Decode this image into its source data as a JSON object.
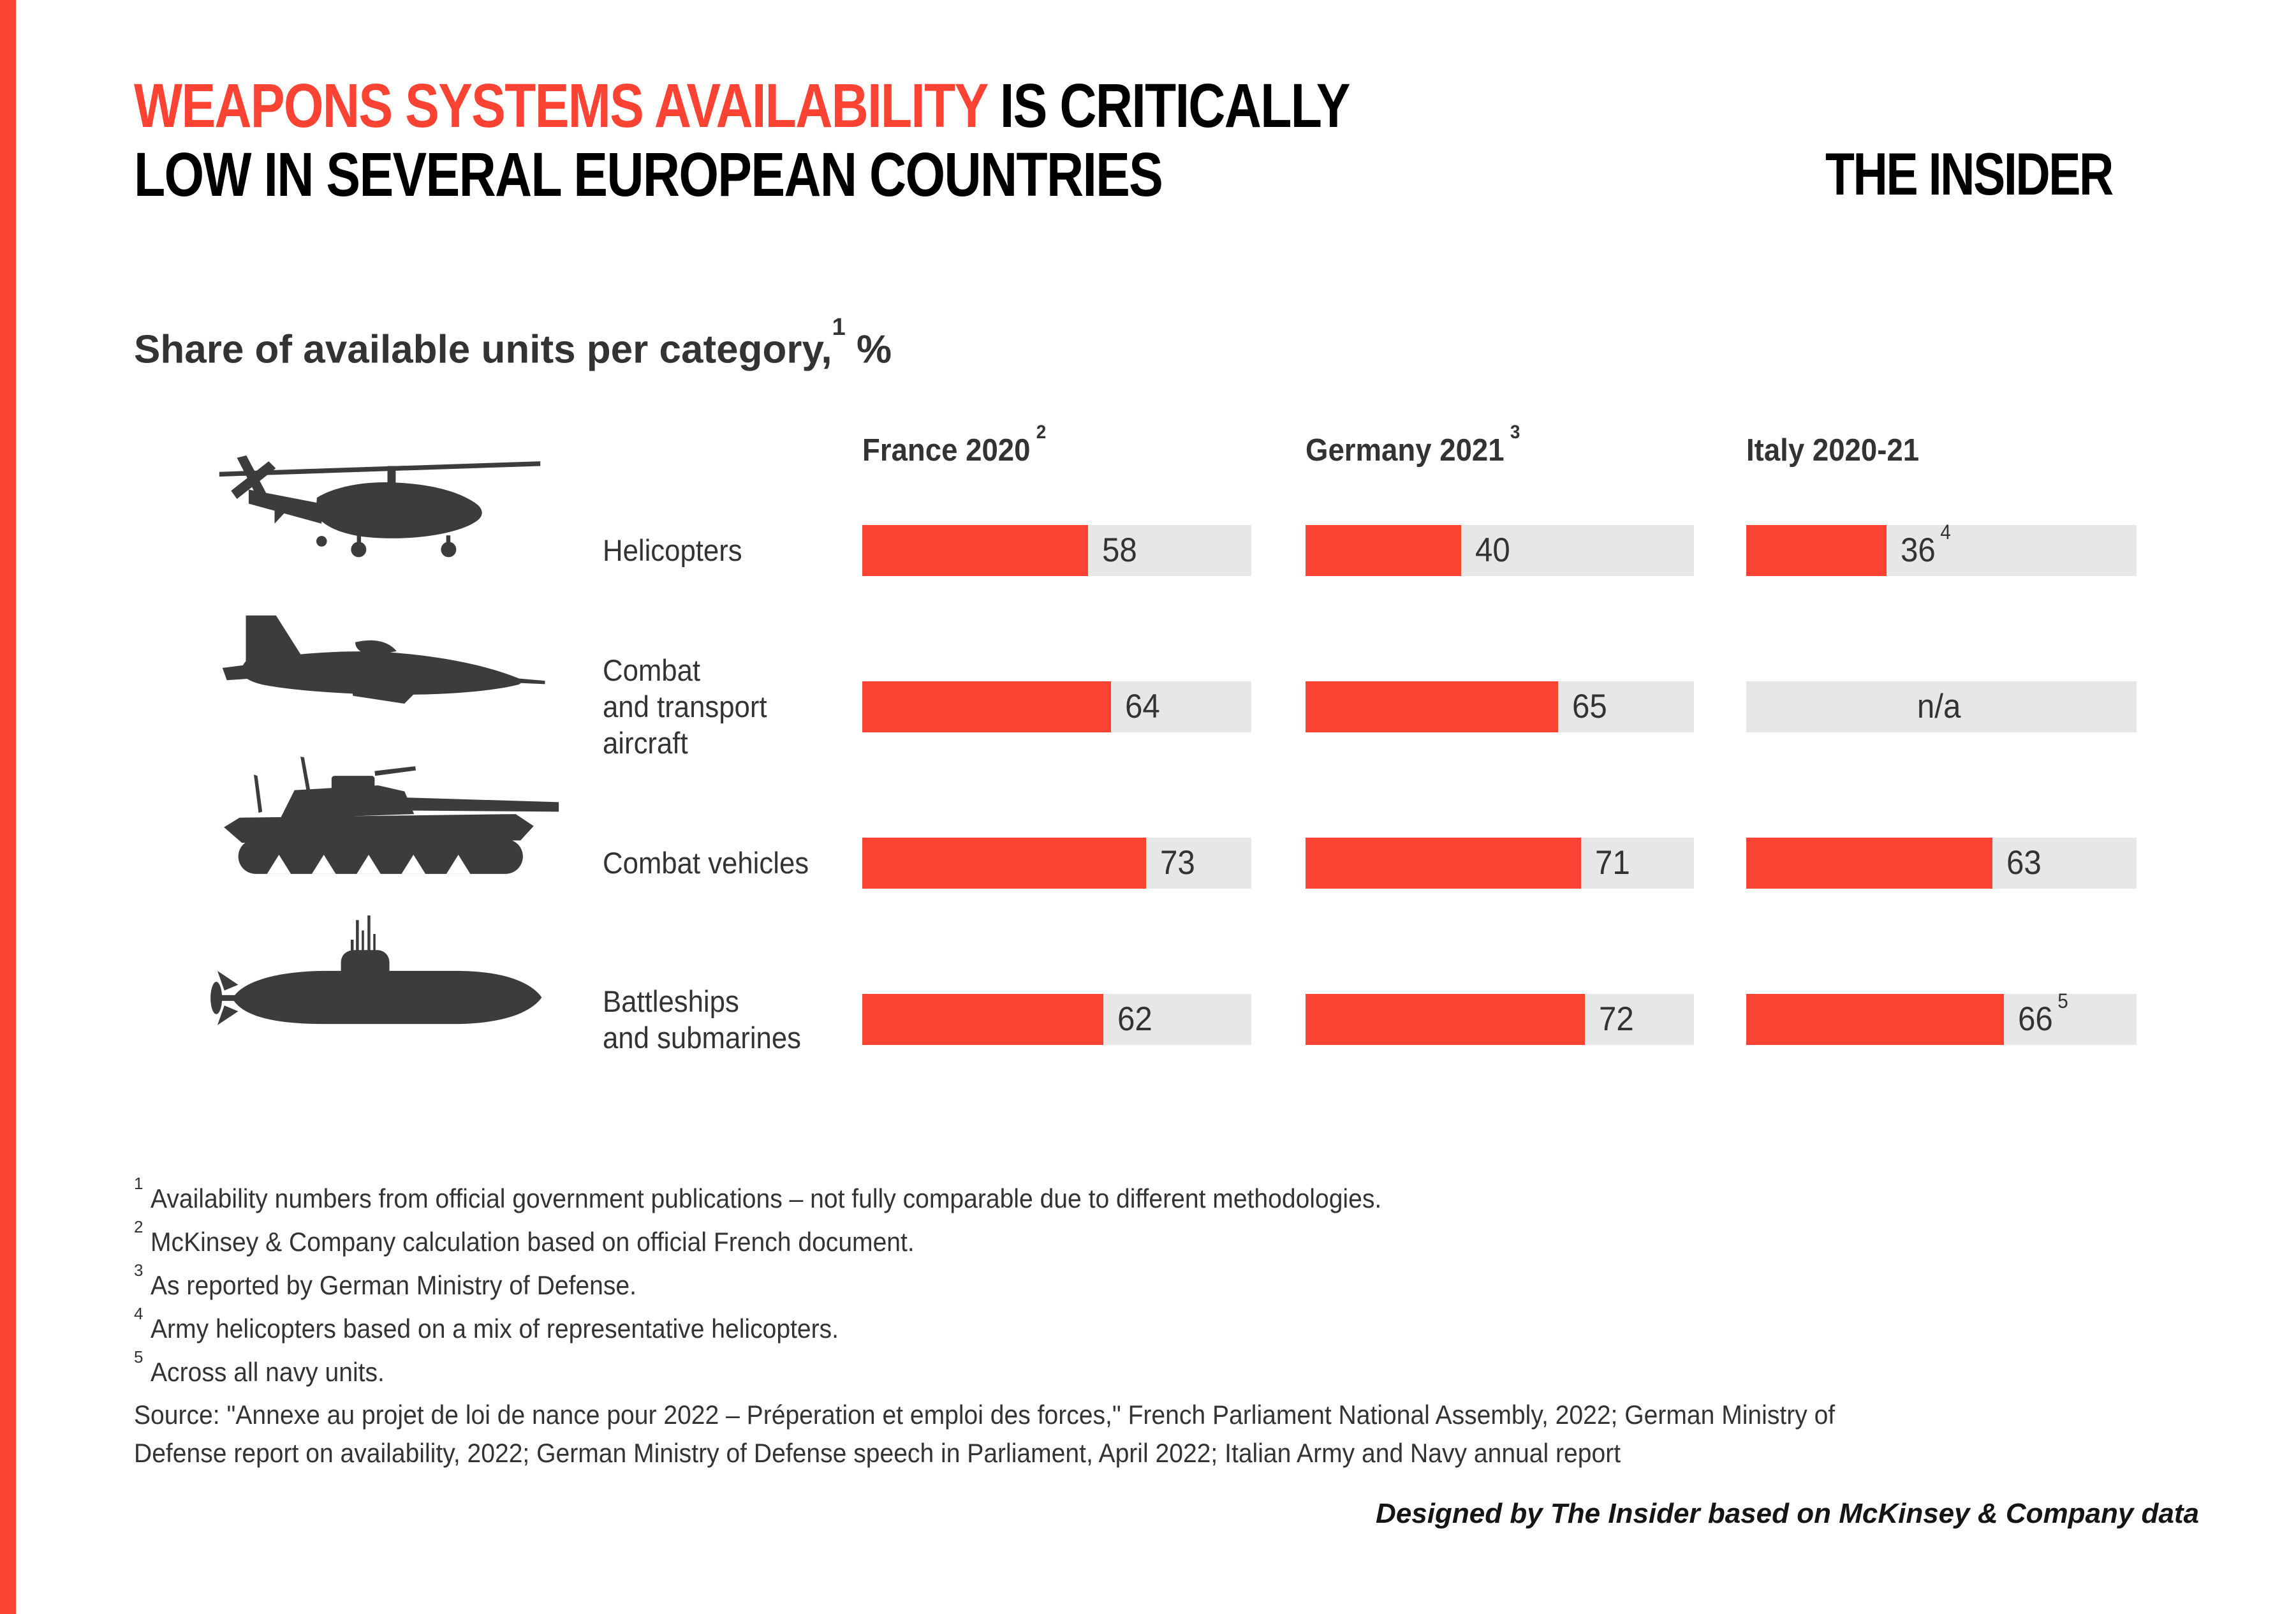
{
  "colors": {
    "accent": "#FB4334",
    "bar_track": "#E7E7E7",
    "icon": "#3C3C3C",
    "text": "#333333",
    "title_black": "#000000"
  },
  "header": {
    "title_highlight": "WEAPONS SYSTEMS AVAILABILITY",
    "title_line1_rest": " IS CRITICALLY",
    "title_line2": "LOW IN SEVERAL EUROPEAN COUNTRIES",
    "logo": "THE INSIDER"
  },
  "subtitle": {
    "text": "Share of available units per category,",
    "mark": "1",
    "suffix": " %"
  },
  "columns": [
    {
      "label": "France 2020",
      "sup": "2"
    },
    {
      "label": "Germany 2021",
      "sup": "3"
    },
    {
      "label": "Italy 2020-21",
      "sup": ""
    }
  ],
  "rows": [
    {
      "label": "Helicopters",
      "icon": "helicopter-icon",
      "cells": [
        {
          "pct": 58,
          "label": "58",
          "sup": ""
        },
        {
          "pct": 40,
          "label": "40",
          "sup": ""
        },
        {
          "pct": 36,
          "label": "36",
          "sup": "4"
        }
      ]
    },
    {
      "label": "Combat\nand transport\naircraft",
      "icon": "fighter-jet-icon",
      "cells": [
        {
          "pct": 64,
          "label": "64",
          "sup": ""
        },
        {
          "pct": 65,
          "label": "65",
          "sup": ""
        },
        {
          "pct": null,
          "label": "n/a",
          "sup": ""
        }
      ]
    },
    {
      "label": "Combat vehicles",
      "icon": "tank-icon",
      "cells": [
        {
          "pct": 73,
          "label": "73",
          "sup": ""
        },
        {
          "pct": 71,
          "label": "71",
          "sup": ""
        },
        {
          "pct": 63,
          "label": "63",
          "sup": ""
        }
      ]
    },
    {
      "label": "Battleships\nand submarines",
      "icon": "submarine-icon",
      "cells": [
        {
          "pct": 62,
          "label": "62",
          "sup": ""
        },
        {
          "pct": 72,
          "label": "72",
          "sup": ""
        },
        {
          "pct": 66,
          "label": "66",
          "sup": "5"
        }
      ]
    }
  ],
  "footnotes": [
    {
      "mark": "1",
      "text": "Availability numbers from official government publications – not fully comparable due to different methodologies."
    },
    {
      "mark": "2",
      "text": "McKinsey & Company calculation based on official French document."
    },
    {
      "mark": "3",
      "text": "As reported by German Ministry of Defense."
    },
    {
      "mark": "4",
      "text": "Army helicopters based on a mix of representative helicopters."
    },
    {
      "mark": "5",
      "text": "Across all navy units."
    }
  ],
  "source": "Source: \"Annexe au projet de loi de nance pour 2022 – Préperation et emploi des forces,\" French Parliament National Assembly, 2022; German Ministry of Defense report on availability, 2022; German Ministry of Defense speech in Parliament, April 2022; Italian Army and Navy annual report",
  "designed_by": "Designed by The Insider based on McKinsey & Company data",
  "chart_data": {
    "type": "bar",
    "orientation": "horizontal",
    "title": "Share of available units per category, %",
    "unit": "%",
    "xlim": [
      0,
      100
    ],
    "grid": false,
    "legend_position": "column-headers-top",
    "categories": [
      "Helicopters",
      "Combat and transport aircraft",
      "Combat vehicles",
      "Battleships and submarines"
    ],
    "series": [
      {
        "name": "France 2020",
        "values": [
          58,
          64,
          73,
          62
        ]
      },
      {
        "name": "Germany 2021",
        "values": [
          40,
          65,
          71,
          72
        ]
      },
      {
        "name": "Italy 2020-21",
        "values": [
          36,
          null,
          63,
          66
        ]
      }
    ],
    "na_label": "n/a"
  }
}
